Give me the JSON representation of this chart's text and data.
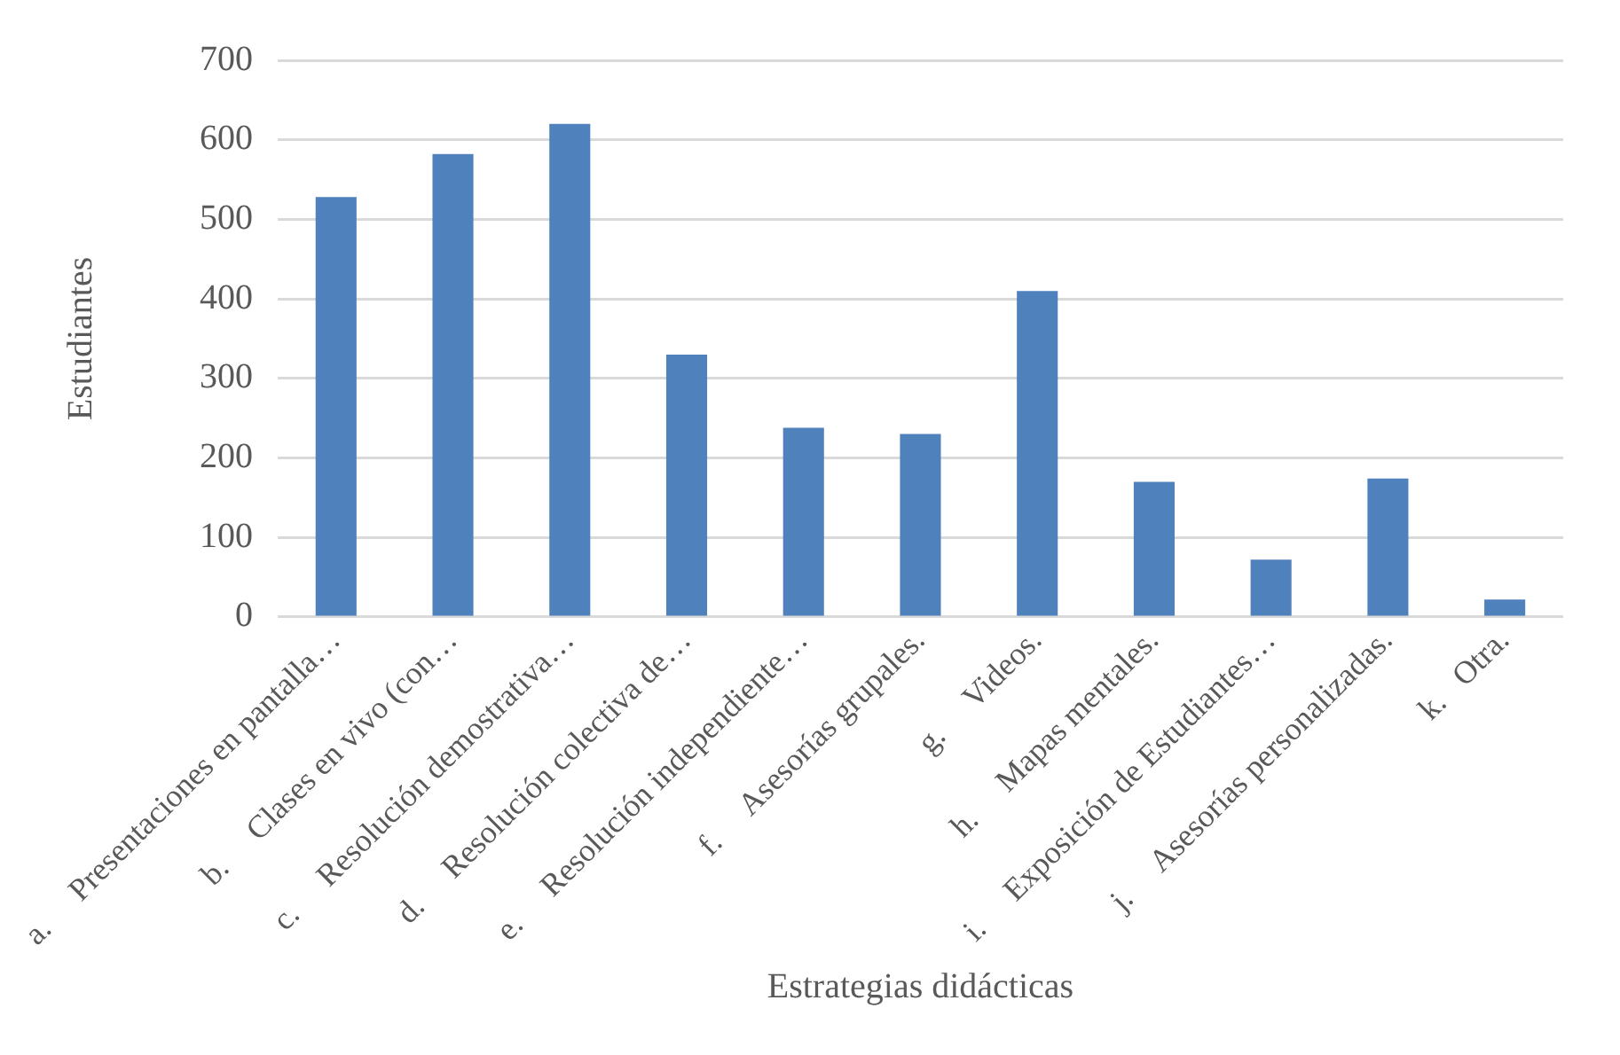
{
  "chart_data": {
    "type": "bar",
    "xlabel": "Estrategias didácticas",
    "ylabel": "Estudiantes",
    "categories": [
      "a.     Presentaciones en pantalla…",
      "b.     Clases en vivo (con…",
      "c.     Resolución demostrativa…",
      "d.     Resolución colectiva de…",
      "e.     Resolución independiente…",
      "f.     Asesorías grupales.",
      "g.     Videos.",
      "h.     Mapas mentales.",
      "i.     Exposición de Estudiantes…",
      "j.     Asesorías personalizadas.",
      "k.   Otra."
    ],
    "values": [
      528,
      582,
      620,
      330,
      238,
      230,
      410,
      170,
      72,
      174,
      22
    ],
    "color": "#4f81bd",
    "ylim": [
      0,
      700
    ],
    "yticks": [
      0,
      100,
      200,
      300,
      400,
      500,
      600,
      700
    ],
    "grid": "y",
    "legend": false
  }
}
